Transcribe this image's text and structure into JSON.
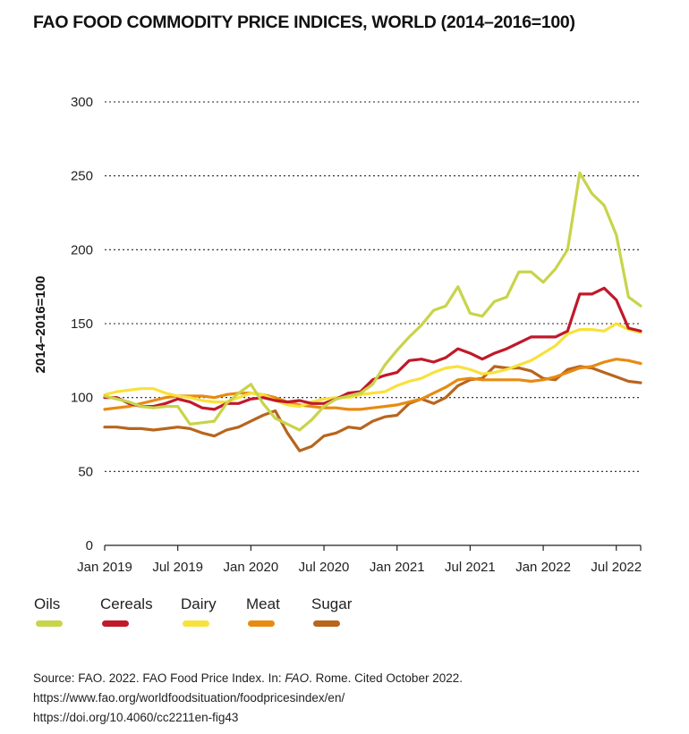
{
  "title": "FAO FOOD COMMODITY PRICE INDICES, WORLD (2014–2016=100)",
  "chart_data": {
    "type": "line",
    "ylabel": "2014–2016=100",
    "ylim": [
      0,
      300
    ],
    "yticks": [
      0,
      50,
      100,
      150,
      200,
      250,
      300
    ],
    "xtick_labels": [
      "Jan 2019",
      "Jul 2019",
      "Jan 2020",
      "Jul 2020",
      "Jan 2021",
      "Jul 2021",
      "Jan 2022",
      "Jul 2022"
    ],
    "xtick_index": [
      0,
      6,
      12,
      18,
      24,
      30,
      36,
      42
    ],
    "x_months": [
      "2019-01",
      "2019-02",
      "2019-03",
      "2019-04",
      "2019-05",
      "2019-06",
      "2019-07",
      "2019-08",
      "2019-09",
      "2019-10",
      "2019-11",
      "2019-12",
      "2020-01",
      "2020-02",
      "2020-03",
      "2020-04",
      "2020-05",
      "2020-06",
      "2020-07",
      "2020-08",
      "2020-09",
      "2020-10",
      "2020-11",
      "2020-12",
      "2021-01",
      "2021-02",
      "2021-03",
      "2021-04",
      "2021-05",
      "2021-06",
      "2021-07",
      "2021-08",
      "2021-09",
      "2021-10",
      "2021-11",
      "2021-12",
      "2022-01",
      "2022-02",
      "2022-03",
      "2022-04",
      "2022-05",
      "2022-06",
      "2022-07",
      "2022-08",
      "2022-09"
    ],
    "grid": "horizontal dotted",
    "legend_position": "bottom",
    "series": [
      {
        "name": "Oils",
        "color": "#c8d44a",
        "values": [
          101,
          99,
          97,
          94,
          93,
          94,
          94,
          82,
          83,
          84,
          96,
          103,
          109,
          96,
          86,
          82,
          78,
          85,
          94,
          99,
          101,
          103,
          109,
          122,
          132,
          141,
          149,
          159,
          162,
          175,
          157,
          155,
          165,
          168,
          185,
          185,
          178,
          187,
          200,
          252,
          238,
          230,
          210,
          168,
          162
        ]
      },
      {
        "name": "Cereals",
        "color": "#c0192a",
        "values": [
          100,
          100,
          96,
          94,
          94,
          96,
          99,
          97,
          93,
          92,
          96,
          96,
          99,
          100,
          98,
          97,
          98,
          96,
          96,
          99,
          103,
          104,
          112,
          115,
          117,
          125,
          126,
          124,
          127,
          133,
          130,
          126,
          130,
          133,
          137,
          141,
          141,
          141,
          145,
          170,
          170,
          174,
          166,
          147,
          145
        ]
      },
      {
        "name": "Dairy",
        "color": "#f8e13c",
        "values": [
          102,
          104,
          105,
          106,
          106,
          103,
          101,
          100,
          98,
          97,
          97,
          100,
          103,
          102,
          98,
          95,
          94,
          97,
          99,
          100,
          100,
          102,
          103,
          104,
          108,
          111,
          113,
          117,
          120,
          121,
          119,
          116,
          117,
          119,
          122,
          125,
          130,
          135,
          143,
          146,
          146,
          145,
          150,
          146,
          144
        ]
      },
      {
        "name": "Meat",
        "color": "#e88a12",
        "values": [
          92,
          93,
          94,
          96,
          98,
          100,
          101,
          101,
          101,
          100,
          102,
          103,
          103,
          102,
          100,
          97,
          95,
          94,
          93,
          93,
          92,
          92,
          93,
          94,
          95,
          97,
          99,
          103,
          107,
          112,
          113,
          112,
          112,
          112,
          112,
          111,
          112,
          114,
          117,
          120,
          121,
          124,
          126,
          125,
          123
        ]
      },
      {
        "name": "Sugar",
        "color": "#b8651e",
        "values": [
          80,
          80,
          79,
          79,
          78,
          79,
          80,
          79,
          76,
          74,
          78,
          80,
          84,
          88,
          91,
          76,
          64,
          67,
          74,
          76,
          80,
          79,
          84,
          87,
          88,
          96,
          99,
          96,
          100,
          108,
          112,
          113,
          121,
          120,
          120,
          118,
          113,
          112,
          119,
          121,
          120,
          117,
          114,
          111,
          110
        ]
      }
    ]
  },
  "legend": [
    {
      "label": "Oils",
      "color": "#c8d44a"
    },
    {
      "label": "Cereals",
      "color": "#c0192a"
    },
    {
      "label": "Dairy",
      "color": "#f8e13c"
    },
    {
      "label": "Meat",
      "color": "#e88a12"
    },
    {
      "label": "Sugar",
      "color": "#b8651e"
    }
  ],
  "source": {
    "line1_a": "Source: FAO. 2022. FAO Food Price Index. In: ",
    "line1_italic": "FAO",
    "line1_b": ". Rome. Cited October 2022.",
    "line2": "https://www.fao.org/worldfoodsituation/foodpricesindex/en/",
    "line3": "https://doi.org/10.4060/cc2211en-fig43"
  }
}
